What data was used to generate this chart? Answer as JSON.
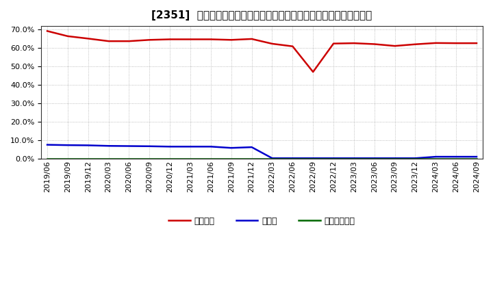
{
  "title": "[2351]  自己資本、のれん、繰延税金資産の総資産に対する比率の推移",
  "ylim": [
    0.0,
    0.72
  ],
  "yticks": [
    0.0,
    0.1,
    0.2,
    0.3,
    0.4,
    0.5,
    0.6,
    0.7
  ],
  "background_color": "#ffffff",
  "grid_color": "#aaaaaa",
  "dates": [
    "2019/06",
    "2019/09",
    "2019/12",
    "2020/03",
    "2020/06",
    "2020/09",
    "2020/12",
    "2021/03",
    "2021/06",
    "2021/09",
    "2021/12",
    "2022/03",
    "2022/06",
    "2022/09",
    "2022/12",
    "2023/03",
    "2023/06",
    "2023/09",
    "2023/12",
    "2024/03",
    "2024/06",
    "2024/09"
  ],
  "equity_ratio": [
    0.693,
    0.665,
    0.652,
    0.638,
    0.638,
    0.645,
    0.648,
    0.648,
    0.648,
    0.645,
    0.65,
    0.624,
    0.61,
    0.471,
    0.625,
    0.627,
    0.622,
    0.612,
    0.621,
    0.628,
    0.627,
    0.627
  ],
  "goodwill_ratio": [
    0.075,
    0.073,
    0.072,
    0.069,
    0.068,
    0.067,
    0.065,
    0.065,
    0.065,
    0.058,
    0.062,
    0.002,
    0.002,
    0.002,
    0.002,
    0.002,
    0.002,
    0.002,
    0.002,
    0.01,
    0.01,
    0.01
  ],
  "deferred_tax_ratio": [
    0.001,
    0.001,
    0.001,
    0.001,
    0.001,
    0.001,
    0.001,
    0.001,
    0.001,
    0.001,
    0.001,
    0.001,
    0.001,
    0.001,
    0.001,
    0.001,
    0.001,
    0.001,
    0.001,
    0.001,
    0.001,
    0.001
  ],
  "equity_color": "#cc0000",
  "goodwill_color": "#0000cc",
  "deferred_tax_color": "#006600",
  "line_width": 1.8,
  "legend_labels": [
    "自己資本",
    "のれん",
    "繰延税金資産"
  ],
  "title_fontsize": 11,
  "tick_fontsize": 8,
  "legend_fontsize": 9
}
